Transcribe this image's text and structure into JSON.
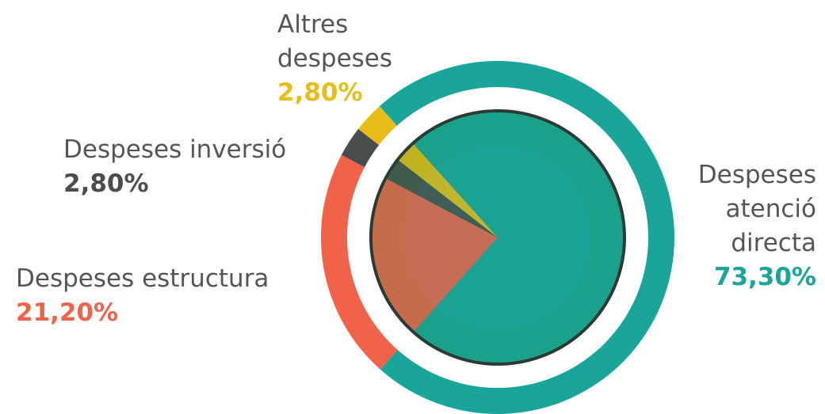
{
  "chart_data": {
    "type": "pie",
    "categories": [
      "Despeses atenció directa",
      "Despeses estructura",
      "Despeses inversió",
      "Altres despeses"
    ],
    "values": [
      73.3,
      21.2,
      2.8,
      2.8
    ],
    "value_labels": [
      "73,30%",
      "21,20%",
      "2,80%",
      "2,80%"
    ],
    "colors": [
      "#1aa59a",
      "#f0634a",
      "#4a4d4d",
      "#e9bd17"
    ]
  }
}
